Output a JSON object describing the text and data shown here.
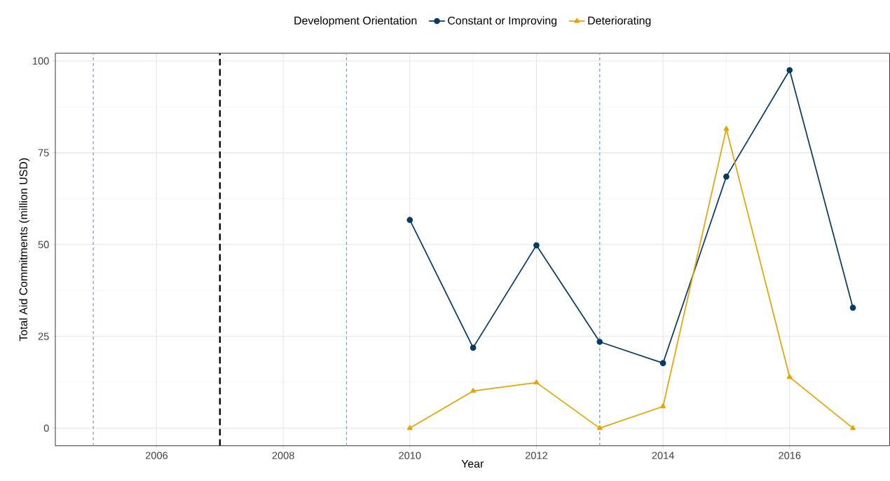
{
  "chart_data": {
    "type": "line",
    "xlabel": "Year",
    "ylabel": "Total Aid Commitments (million USD)",
    "legend_title": "Development Orientation",
    "x": [
      2010,
      2011,
      2012,
      2013,
      2014,
      2015,
      2016,
      2017
    ],
    "series": [
      {
        "name": "Constant or Improving",
        "color": "#073b63",
        "marker": "circle",
        "values": [
          56.7,
          21.9,
          49.8,
          23.5,
          17.7,
          68.5,
          97.5,
          32.8
        ]
      },
      {
        "name": "Deteriorating",
        "color": "#e8a300",
        "marker": "triangle",
        "values": [
          0,
          10.1,
          12.4,
          0,
          5.9,
          81.5,
          13.9,
          0
        ]
      }
    ],
    "xlim": [
      2004.4,
      2017.58
    ],
    "ylim": [
      -4.8,
      102.1
    ],
    "xticks": [
      2006,
      2008,
      2010,
      2012,
      2014,
      2016
    ],
    "yticks": [
      0,
      25,
      50,
      75,
      100
    ],
    "ref_lines": [
      {
        "axis": "x",
        "value": 2005,
        "color": "#7f9cc4",
        "line_style": "dashed"
      },
      {
        "axis": "x",
        "value": 2007,
        "color": "#000000",
        "line_style": "dashed"
      },
      {
        "axis": "x",
        "value": 2009,
        "color": "#7f9cc4",
        "line_style": "dashed"
      },
      {
        "axis": "x",
        "value": 2013,
        "color": "#7f9cc4",
        "line_style": "dashed"
      }
    ],
    "grid": true,
    "legend": "top",
    "line_style": "solid"
  }
}
